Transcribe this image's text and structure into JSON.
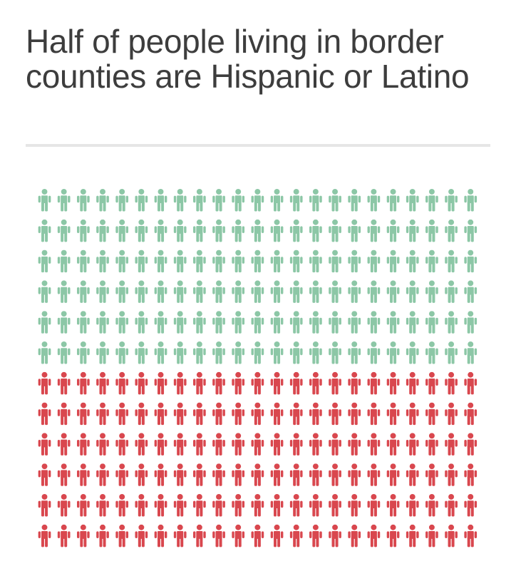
{
  "title": "Half of people living in border counties are Hispanic or Latino",
  "colors": {
    "hispanic_or_latino": "#8cc7a6",
    "other": "#d9474e"
  },
  "icon": "person-icon",
  "chart_data": {
    "type": "pictogram",
    "title": "Half of people living in border counties are Hispanic or Latino",
    "grid": {
      "columns": 23,
      "rows": 12
    },
    "series": [
      {
        "color": "#8cc7a6",
        "rows": 6,
        "count": 138
      },
      {
        "color": "#d9474e",
        "rows": 6,
        "count": 138
      }
    ]
  }
}
